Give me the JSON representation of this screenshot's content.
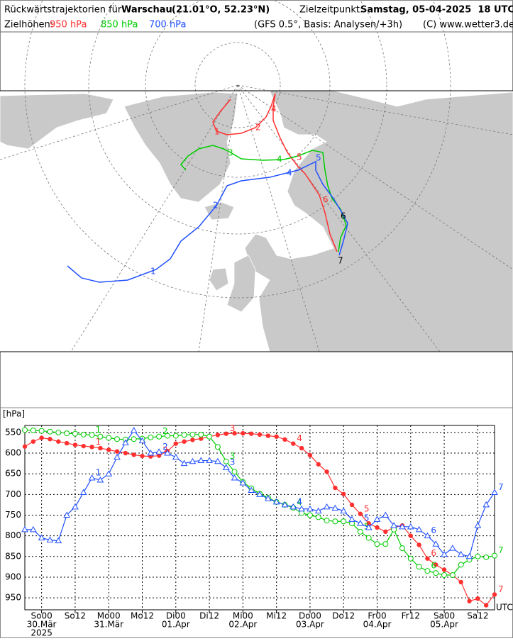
{
  "header": {
    "title_prefix": "Rückwärtstrajektorien für",
    "city": "Warschau",
    "coords": "(21.01°O, 52.23°N)",
    "target_label": "Zielzeitpunkt:",
    "target_time": "Samstag, 05-04-2025  18 UTC",
    "levels_label": "Zielhöhen:",
    "model": "(GFS 0.5°, Basis: Analysen/+3h)",
    "copyright": "(C) www.wetter3.de"
  },
  "chart_data": {
    "type": "line",
    "y_label": "[hPa]",
    "x_label": "UTC",
    "y_inverted": true,
    "grid": true,
    "categories": [
      null,
      null,
      "So00",
      null,
      null,
      null,
      "So12",
      null,
      null,
      null,
      "Mo00",
      null,
      null,
      null,
      "Mo12",
      null,
      null,
      null,
      "Di00",
      null,
      null,
      null,
      "Di12",
      null,
      null,
      null,
      "Mi00",
      null,
      null,
      null,
      "Mi12",
      null,
      null,
      null,
      "Do00",
      null,
      null,
      null,
      "Do12",
      null,
      null,
      null,
      "Fr00",
      null,
      null,
      null,
      "Fr12",
      null,
      null,
      null,
      "Sa00",
      null,
      null,
      null,
      "Sa12",
      null,
      null
    ],
    "date_labels": [
      null,
      null,
      "30.Mär",
      null,
      null,
      null,
      null,
      null,
      null,
      null,
      "31.Mär",
      null,
      null,
      null,
      null,
      null,
      null,
      null,
      "01.Apr",
      null,
      null,
      null,
      null,
      null,
      null,
      null,
      "02.Apr",
      null,
      null,
      null,
      null,
      null,
      null,
      null,
      "03.Apr",
      null,
      null,
      null,
      null,
      null,
      null,
      null,
      "04.Apr",
      null,
      null,
      null,
      null,
      null,
      null,
      null,
      "05.Apr",
      null,
      null,
      null,
      null,
      null,
      null
    ],
    "year_label": "2025",
    "step_labels": [
      "1",
      "2",
      "3",
      "4",
      "5",
      "6",
      "7"
    ],
    "ylim": [
      533,
      979
    ],
    "yticks": [
      550,
      600,
      650,
      700,
      750,
      800,
      850,
      900,
      950
    ],
    "series": [
      {
        "name": "950 hPa",
        "color": "#ff3030",
        "marker": "dot",
        "values": [
          584,
          572,
          563,
          566,
          572,
          576,
          580,
          583,
          585,
          588,
          592,
          596,
          600,
          604,
          607,
          608,
          606,
          595,
          577,
          572,
          568,
          565,
          560,
          556,
          553,
          552,
          552,
          553,
          555,
          558,
          560,
          567,
          577,
          588,
          605,
          627,
          645,
          684,
          699,
          725,
          747,
          770,
          780,
          790,
          780,
          775,
          800,
          822,
          855,
          870,
          882,
          895,
          912,
          958,
          952,
          968,
          942
        ]
      },
      {
        "name": "850 hPa",
        "color": "#00cc00",
        "marker": "circle",
        "values": [
          544,
          545,
          546,
          548,
          550,
          552,
          553,
          555,
          556,
          560,
          563,
          566,
          567,
          566,
          565,
          562,
          560,
          558,
          558,
          556,
          555,
          555,
          560,
          585,
          620,
          645,
          670,
          685,
          698,
          708,
          718,
          725,
          732,
          745,
          750,
          755,
          763,
          765,
          765,
          770,
          790,
          805,
          820,
          820,
          785,
          830,
          855,
          875,
          885,
          890,
          895,
          895,
          870,
          858,
          850,
          852,
          848
        ]
      },
      {
        "name": "700 hPa",
        "color": "#2050ff",
        "marker": "triangle",
        "values": [
          785,
          785,
          805,
          810,
          812,
          750,
          730,
          695,
          660,
          665,
          650,
          610,
          575,
          545,
          570,
          600,
          597,
          600,
          610,
          625,
          620,
          618,
          618,
          620,
          635,
          660,
          672,
          690,
          700,
          710,
          718,
          725,
          730,
          735,
          735,
          740,
          730,
          733,
          740,
          760,
          770,
          780,
          760,
          750,
          775,
          778,
          778,
          785,
          800,
          820,
          845,
          830,
          845,
          850,
          775,
          725,
          695
        ]
      }
    ]
  }
}
